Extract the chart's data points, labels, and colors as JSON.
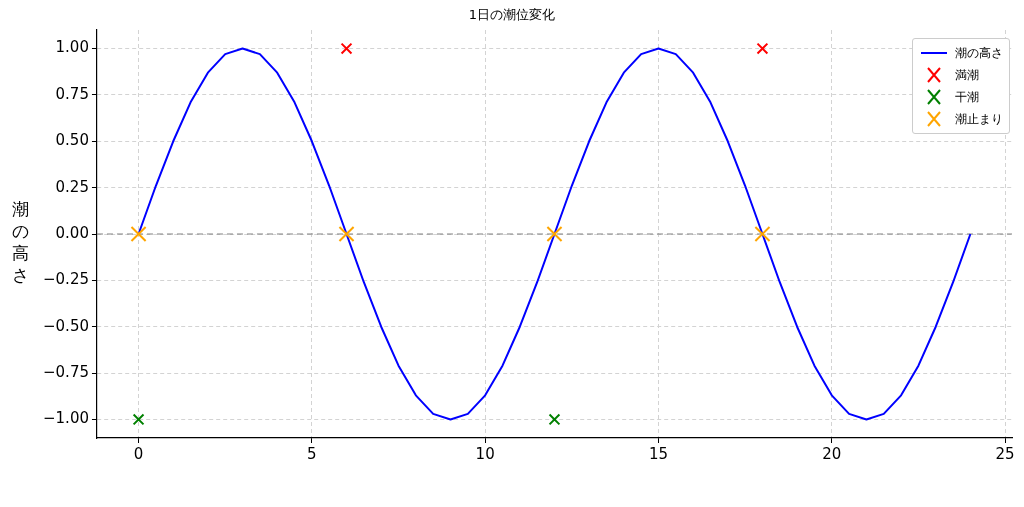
{
  "chart_data": {
    "type": "line",
    "title": "1日の潮位変化",
    "ylabel": "潮の高さ",
    "series": [
      {
        "name": "潮の高さ",
        "type": "line",
        "color": "#0000ff",
        "marker": "none",
        "x": [
          0,
          0.5,
          1,
          1.5,
          2,
          2.5,
          3,
          3.5,
          4,
          4.5,
          5,
          5.5,
          6,
          6.5,
          7,
          7.5,
          8,
          8.5,
          9,
          9.5,
          10,
          10.5,
          11,
          11.5,
          12,
          12.5,
          13,
          13.5,
          14,
          14.5,
          15,
          15.5,
          16,
          16.5,
          17,
          17.5,
          18,
          18.5,
          19,
          19.5,
          20,
          20.5,
          21,
          21.5,
          22,
          22.5,
          23,
          23.5,
          24
        ],
        "values": [
          0,
          0.26,
          0.5,
          0.71,
          0.87,
          0.97,
          1,
          0.97,
          0.87,
          0.71,
          0.5,
          0.26,
          0,
          -0.26,
          -0.5,
          -0.71,
          -0.87,
          -0.97,
          -1,
          -0.97,
          -0.87,
          -0.71,
          -0.5,
          -0.26,
          0,
          0.26,
          0.5,
          0.71,
          0.87,
          0.97,
          1,
          0.97,
          0.87,
          0.71,
          0.5,
          0.26,
          0,
          -0.26,
          -0.5,
          -0.71,
          -0.87,
          -0.97,
          -1,
          -0.97,
          -0.87,
          -0.71,
          -0.5,
          -0.26,
          0
        ]
      },
      {
        "name": "満潮",
        "type": "scatter",
        "color": "#ff0000",
        "marker": "cross",
        "x": [
          6,
          18
        ],
        "values": [
          1,
          1
        ]
      },
      {
        "name": "干潮",
        "type": "scatter",
        "color": "#008000",
        "marker": "cross",
        "x": [
          0,
          12
        ],
        "values": [
          -1,
          -1
        ]
      },
      {
        "name": "潮止まり",
        "type": "scatter",
        "color": "#ffa500",
        "marker": "cross",
        "x": [
          0,
          6,
          12,
          18
        ],
        "values": [
          0,
          0,
          0,
          0
        ]
      }
    ],
    "xlim": [
      -1.2,
      25.2
    ],
    "xticks": [
      0,
      5,
      10,
      15,
      20,
      25
    ],
    "ylim": [
      -1.1,
      1.1
    ],
    "yticks": [
      {
        "value": -1,
        "label": "−1.00"
      },
      {
        "value": -0.75,
        "label": "−0.75"
      },
      {
        "value": -0.5,
        "label": "−0.50"
      },
      {
        "value": -0.25,
        "label": "−0.25"
      },
      {
        "value": 0,
        "label": "0.00"
      },
      {
        "value": 0.25,
        "label": "0.25"
      },
      {
        "value": 0.5,
        "label": "0.50"
      },
      {
        "value": 0.75,
        "label": "0.75"
      },
      {
        "value": 1,
        "label": "1.00"
      }
    ],
    "ref_lines": [
      {
        "axis": "y",
        "value": 0,
        "color": "#808080",
        "line_style": "dashed"
      }
    ],
    "grid": true,
    "legend": "top right"
  }
}
